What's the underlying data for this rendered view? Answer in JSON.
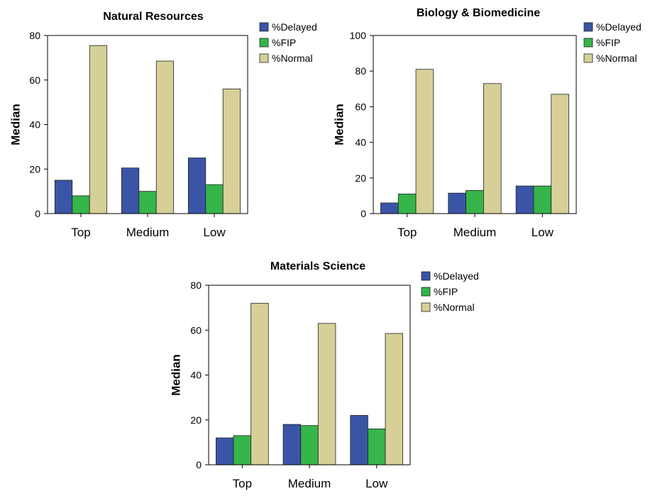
{
  "chart_data": [
    {
      "type": "bar",
      "title": "Natural Resources",
      "ylabel": "Median",
      "xlabel": "",
      "categories": [
        "Top",
        "Medium",
        "Low"
      ],
      "ylim": [
        0,
        80
      ],
      "yticks": [
        0,
        20,
        40,
        60,
        80
      ],
      "grid": false,
      "legend_position": "top-right, outside",
      "series": [
        {
          "name": "%Delayed",
          "color": "#3b55a6",
          "values": [
            15,
            20.5,
            25
          ]
        },
        {
          "name": "%FIP",
          "color": "#35b54a",
          "values": [
            8,
            10,
            13
          ]
        },
        {
          "name": "%Normal",
          "color": "#d6cf98",
          "values": [
            75.5,
            68.5,
            56
          ]
        }
      ]
    },
    {
      "type": "bar",
      "title": "Biology & Biomedicine",
      "ylabel": "Median",
      "xlabel": "",
      "categories": [
        "Top",
        "Medium",
        "Low"
      ],
      "ylim": [
        0,
        100
      ],
      "yticks": [
        0,
        20,
        40,
        60,
        80,
        100
      ],
      "grid": false,
      "legend_position": "top-right, outside",
      "series": [
        {
          "name": "%Delayed",
          "color": "#3b55a6",
          "values": [
            6,
            11.5,
            15.5
          ]
        },
        {
          "name": "%FIP",
          "color": "#35b54a",
          "values": [
            11,
            13,
            15.5
          ]
        },
        {
          "name": "%Normal",
          "color": "#d6cf98",
          "values": [
            81,
            73,
            67
          ]
        }
      ]
    },
    {
      "type": "bar",
      "title": "Materials Science",
      "ylabel": "Median",
      "xlabel": "",
      "categories": [
        "Top",
        "Medium",
        "Low"
      ],
      "ylim": [
        0,
        80
      ],
      "yticks": [
        0,
        20,
        40,
        60,
        80
      ],
      "grid": false,
      "legend_position": "top-right, outside",
      "series": [
        {
          "name": "%Delayed",
          "color": "#3b55a6",
          "values": [
            12,
            18,
            22
          ]
        },
        {
          "name": "%FIP",
          "color": "#35b54a",
          "values": [
            13,
            17.5,
            16
          ]
        },
        {
          "name": "%Normal",
          "color": "#d6cf98",
          "values": [
            72,
            63,
            58.5
          ]
        }
      ]
    }
  ]
}
